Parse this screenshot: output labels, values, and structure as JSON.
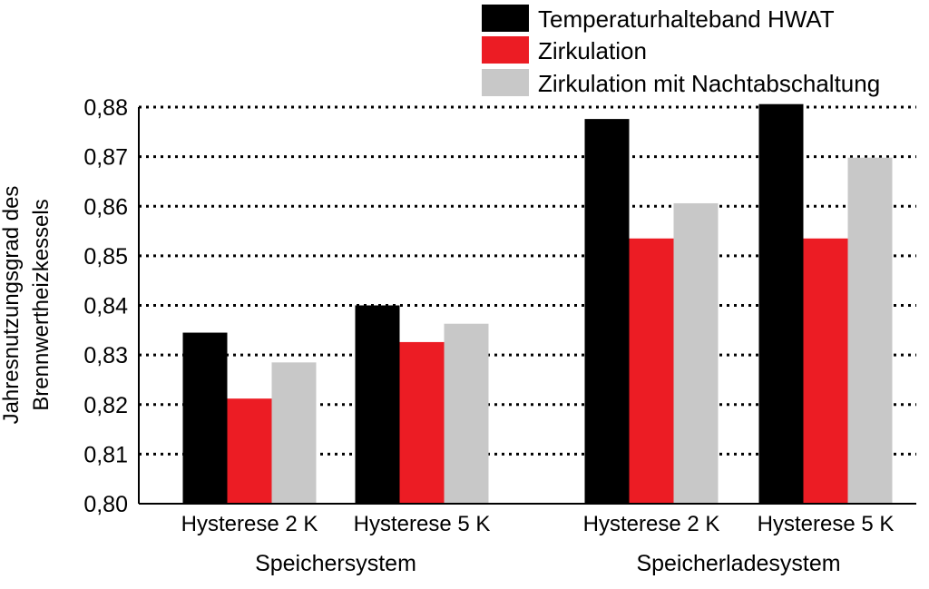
{
  "chart_data": {
    "type": "bar",
    "title": "",
    "ylabel_lines": [
      "Jahresnutzungsgrad des",
      "Brennwertheizkessels"
    ],
    "ylim": [
      0.8,
      0.88
    ],
    "yticks": [
      0.8,
      0.81,
      0.82,
      0.83,
      0.84,
      0.85,
      0.86,
      0.87,
      0.88
    ],
    "ytick_labels": [
      "0,80",
      "0,81",
      "0,82",
      "0,83",
      "0,84",
      "0,85",
      "0,86",
      "0,87",
      "0,88"
    ],
    "grid": "dotted-horizontal",
    "legend_position": "top-right",
    "categories": [
      "Hysterese 2 K",
      "Hysterese 5 K",
      "Hysterese 2 K",
      "Hysterese 5 K"
    ],
    "groups": [
      {
        "label": "Speichersystem",
        "categories": [
          0,
          1
        ]
      },
      {
        "label": "Speicherladesystem",
        "categories": [
          2,
          3
        ]
      }
    ],
    "series": [
      {
        "name": "Temperaturhalteband HWAT",
        "color": "#000000",
        "values": [
          0.8345,
          0.84,
          0.8776,
          0.8806
        ]
      },
      {
        "name": "Zirkulation",
        "color": "#ec1c24",
        "values": [
          0.8212,
          0.8326,
          0.8535,
          0.8535
        ]
      },
      {
        "name": "Zirkulation mit Nachtabschaltung",
        "color": "#c8c8c8",
        "values": [
          0.8285,
          0.8363,
          0.8606,
          0.8698
        ]
      }
    ]
  }
}
